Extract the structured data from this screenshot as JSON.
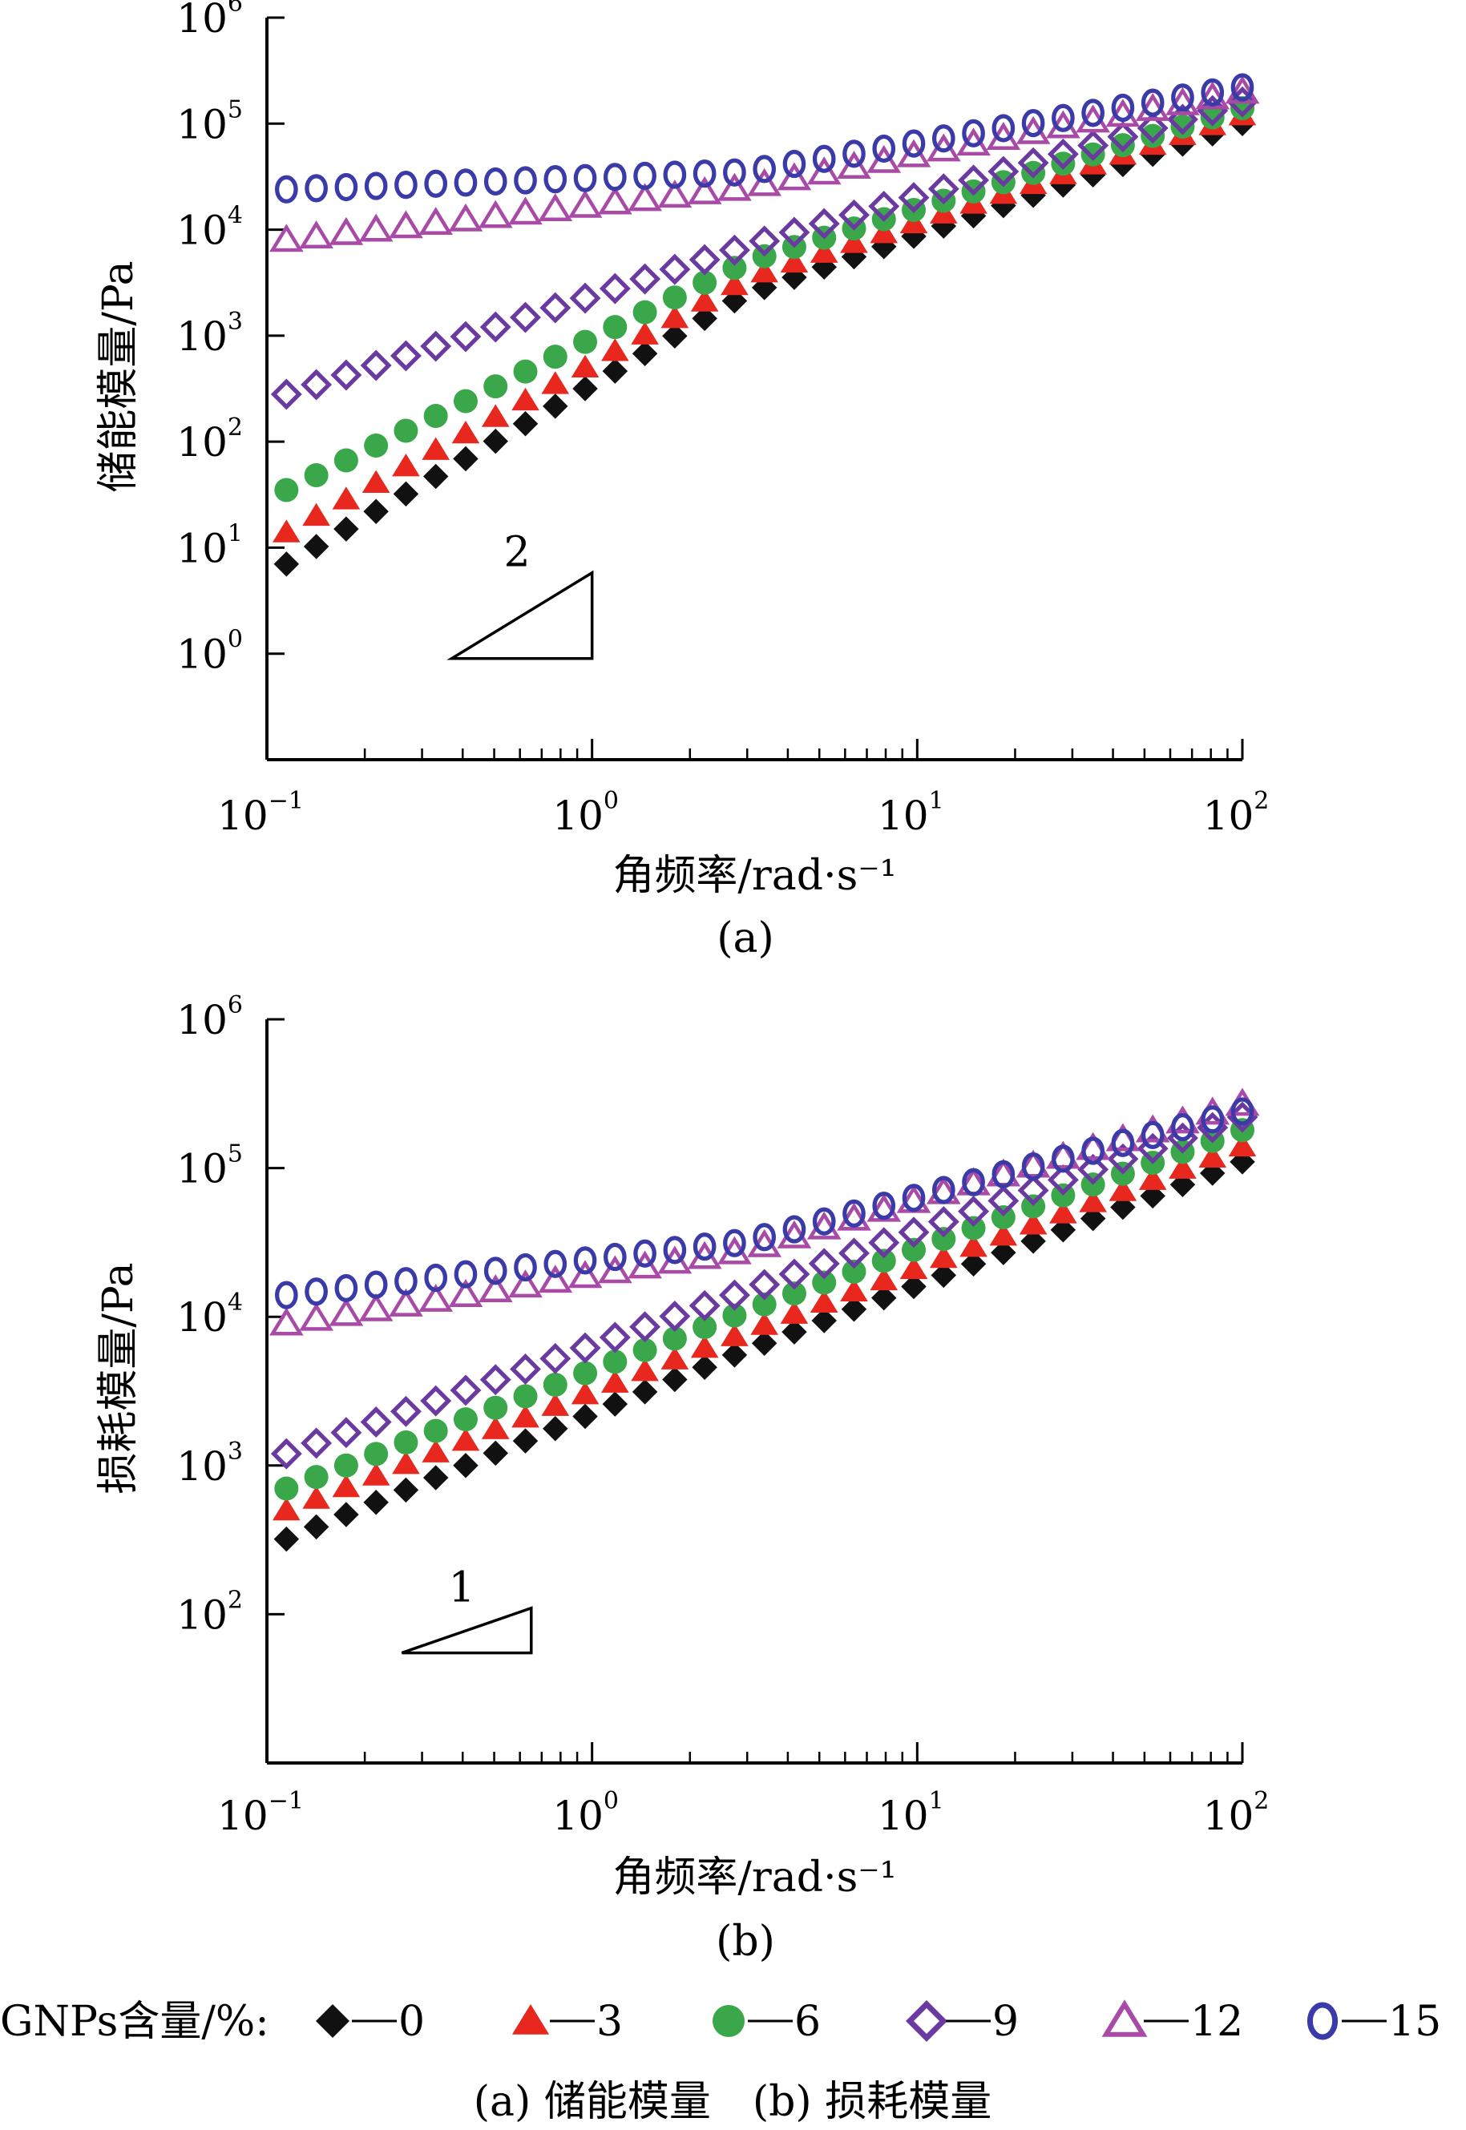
{
  "chart_data": [
    {
      "type": "scatter",
      "panel_label": "(a)",
      "xlabel": "角频率/rad·s⁻¹",
      "ylabel": "储能模量/Pa",
      "x_scale": "log",
      "y_scale": "log",
      "xlim": [
        0.1,
        100
      ],
      "ylim": [
        0.1,
        1000000
      ],
      "x_ticks": [
        {
          "base": "10",
          "exp": "−1"
        },
        {
          "base": "10",
          "exp": "0"
        },
        {
          "base": "10",
          "exp": "1"
        },
        {
          "base": "10",
          "exp": "2"
        }
      ],
      "y_ticks": [
        {
          "base": "10",
          "exp": "0"
        },
        {
          "base": "10",
          "exp": "1"
        },
        {
          "base": "10",
          "exp": "2"
        },
        {
          "base": "10",
          "exp": "3"
        },
        {
          "base": "10",
          "exp": "4"
        },
        {
          "base": "10",
          "exp": "5"
        },
        {
          "base": "10",
          "exp": "6"
        }
      ],
      "slope_label": "2",
      "slope_triangle": {
        "x_start": 0.37,
        "x_end": 1.0,
        "y_low": 0.9,
        "y_high": 5.8
      },
      "series": [
        {
          "legend": "0",
          "start": 7,
          "mid": 2500,
          "end": 100000
        },
        {
          "legend": "3",
          "start": 14,
          "mid": 3500,
          "end": 120000
        },
        {
          "legend": "6",
          "start": 35,
          "mid": 5000,
          "end": 140000
        },
        {
          "legend": "9",
          "start": 280,
          "mid": 7000,
          "end": 160000
        },
        {
          "legend": "12",
          "start": 8000,
          "mid": 25000,
          "end": 200000
        },
        {
          "legend": "15",
          "start": 24000,
          "mid": 35000,
          "end": 220000
        }
      ]
    },
    {
      "type": "scatter",
      "panel_label": "(b)",
      "xlabel": "角频率/rad·s⁻¹",
      "ylabel": "损耗模量/Pa",
      "x_scale": "log",
      "y_scale": "log",
      "xlim": [
        0.1,
        100
      ],
      "ylim": [
        10,
        1000000
      ],
      "x_ticks": [
        {
          "base": "10",
          "exp": "−1"
        },
        {
          "base": "10",
          "exp": "0"
        },
        {
          "base": "10",
          "exp": "1"
        },
        {
          "base": "10",
          "exp": "2"
        }
      ],
      "y_ticks": [
        {
          "base": "10",
          "exp": "2"
        },
        {
          "base": "10",
          "exp": "3"
        },
        {
          "base": "10",
          "exp": "4"
        },
        {
          "base": "10",
          "exp": "5"
        },
        {
          "base": "10",
          "exp": "6"
        }
      ],
      "slope_label": "1",
      "slope_triangle": {
        "x_start": 0.26,
        "x_end": 0.65,
        "y_low": 55,
        "y_high": 110
      },
      "series": [
        {
          "legend": "0",
          "start": 320,
          "mid": 6000,
          "end": 110000
        },
        {
          "legend": "3",
          "start": 500,
          "mid": 8000,
          "end": 140000
        },
        {
          "legend": "6",
          "start": 700,
          "mid": 11000,
          "end": 180000
        },
        {
          "legend": "9",
          "start": 1200,
          "mid": 15000,
          "end": 220000
        },
        {
          "legend": "12",
          "start": 9000,
          "mid": 28000,
          "end": 270000
        },
        {
          "legend": "15",
          "start": 14000,
          "mid": 32000,
          "end": 240000
        }
      ]
    }
  ],
  "legend": {
    "title": "GNPs含量/%:",
    "placement": "bottom",
    "entries": [
      {
        "label": "0",
        "marker": "filled-diamond",
        "color": "#111111"
      },
      {
        "label": "3",
        "marker": "filled-triangle",
        "color": "#e8281e"
      },
      {
        "label": "6",
        "marker": "filled-circle",
        "color": "#3aa84a"
      },
      {
        "label": "9",
        "marker": "open-diamond",
        "color": "#6a3aa0"
      },
      {
        "label": "12",
        "marker": "open-triangle",
        "color": "#a84aa6"
      },
      {
        "label": "15",
        "marker": "open-circle",
        "color": "#3a3aa8"
      }
    ]
  },
  "caption": "(a) 储能模量　(b) 损耗模量"
}
